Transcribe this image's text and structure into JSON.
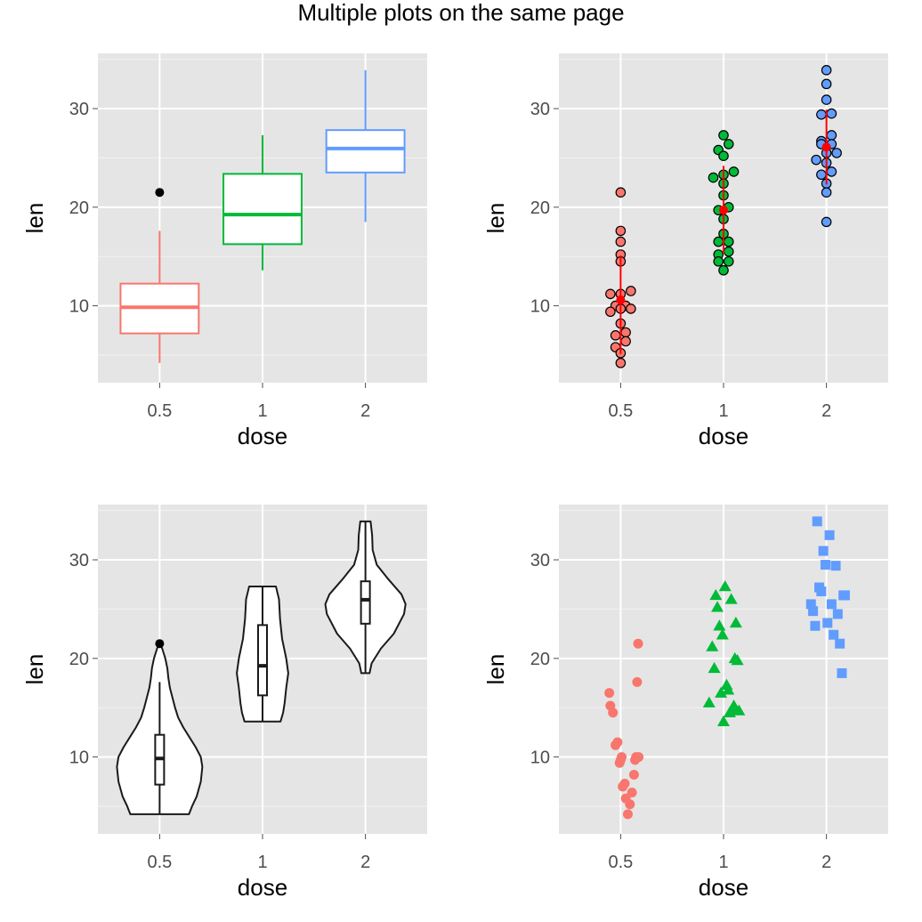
{
  "page": {
    "title": "Multiple plots on the same page"
  },
  "colors": {
    "panel_bg": "#e5e5e5",
    "grid_major": "#ffffff",
    "grid_minor": "#f2f2f2",
    "dose_0_5": "#f8766d",
    "dose_1": "#00ba38",
    "dose_2": "#619cff",
    "summary": "#ff0000",
    "outline": "#1a1a1a"
  },
  "chart_data": [
    {
      "type": "boxplot",
      "xlabel": "dose",
      "ylabel": "len",
      "categories": [
        "0.5",
        "1",
        "2"
      ],
      "ylim": [
        2.2,
        35.6
      ],
      "yticks": [
        10,
        20,
        30
      ],
      "grid": true,
      "boxes": [
        {
          "category": "0.5",
          "min": 4.2,
          "q1": 7.2,
          "median": 9.85,
          "q3": 12.25,
          "max": 17.6,
          "outliers": [
            21.5
          ]
        },
        {
          "category": "1",
          "min": 13.6,
          "q1": 16.25,
          "median": 19.25,
          "q3": 23.38,
          "max": 27.3,
          "outliers": []
        },
        {
          "category": "2",
          "min": 18.5,
          "q1": 23.52,
          "median": 25.95,
          "q3": 27.82,
          "max": 33.9,
          "outliers": []
        }
      ]
    },
    {
      "type": "dotplot",
      "xlabel": "dose",
      "ylabel": "len",
      "categories": [
        "0.5",
        "1",
        "2"
      ],
      "ylim": [
        2.2,
        35.6
      ],
      "yticks": [
        10,
        20,
        30
      ],
      "grid": true,
      "groups": [
        {
          "category": "0.5",
          "values": [
            4.2,
            5.2,
            5.8,
            6.4,
            7.0,
            7.3,
            8.2,
            9.4,
            9.7,
            9.7,
            10.0,
            10.0,
            11.2,
            11.2,
            11.5,
            14.5,
            15.2,
            16.5,
            17.6,
            21.5
          ],
          "mean": 10.6,
          "mean_minus_sd": 5.1,
          "mean_plus_sd": 15.1
        },
        {
          "category": "1",
          "values": [
            13.6,
            14.5,
            14.5,
            15.2,
            15.5,
            16.5,
            16.5,
            17.3,
            18.8,
            19.7,
            20.0,
            21.2,
            22.4,
            23.0,
            23.3,
            23.6,
            25.2,
            25.8,
            26.4,
            27.3
          ],
          "mean": 19.7,
          "mean_minus_sd": 15.3,
          "mean_plus_sd": 24.2
        },
        {
          "category": "2",
          "values": [
            18.5,
            21.5,
            22.4,
            23.3,
            23.6,
            24.5,
            24.8,
            25.5,
            25.5,
            26.4,
            26.4,
            26.7,
            27.3,
            29.4,
            29.5,
            30.9,
            32.5,
            33.9
          ],
          "mean": 26.1,
          "mean_minus_sd": 22.3,
          "mean_plus_sd": 29.9
        }
      ]
    },
    {
      "type": "violin",
      "xlabel": "dose",
      "ylabel": "len",
      "categories": [
        "0.5",
        "1",
        "2"
      ],
      "ylim": [
        2.2,
        35.6
      ],
      "yticks": [
        10,
        20,
        30
      ],
      "grid": true,
      "violins": [
        {
          "category": "0.5",
          "profile": [
            [
              4.2,
              0.57
            ],
            [
              5,
              0.63
            ],
            [
              6,
              0.72
            ],
            [
              7.5,
              0.8
            ],
            [
              9,
              0.83
            ],
            [
              10,
              0.8
            ],
            [
              11,
              0.7
            ],
            [
              12,
              0.58
            ],
            [
              13,
              0.46
            ],
            [
              14,
              0.36
            ],
            [
              15,
              0.3
            ],
            [
              16,
              0.25
            ],
            [
              17,
              0.2
            ],
            [
              18,
              0.17
            ],
            [
              19,
              0.15
            ],
            [
              20,
              0.11
            ],
            [
              21,
              0.05
            ],
            [
              21.5,
              0.01
            ]
          ],
          "box": {
            "min": 4.2,
            "q1": 7.2,
            "median": 9.85,
            "q3": 12.25,
            "max": 17.6,
            "outliers": [
              21.5
            ]
          }
        },
        {
          "category": "1",
          "profile": [
            [
              13.6,
              0.35
            ],
            [
              14.5,
              0.4
            ],
            [
              15.5,
              0.43
            ],
            [
              17,
              0.46
            ],
            [
              18.5,
              0.5
            ],
            [
              20,
              0.46
            ],
            [
              22,
              0.38
            ],
            [
              24,
              0.34
            ],
            [
              26,
              0.32
            ],
            [
              27.3,
              0.26
            ]
          ],
          "box": {
            "min": 13.6,
            "q1": 16.25,
            "median": 19.25,
            "q3": 23.38,
            "max": 27.3,
            "outliers": []
          }
        },
        {
          "category": "2",
          "profile": [
            [
              18.5,
              0.08
            ],
            [
              19.5,
              0.12
            ],
            [
              21,
              0.3
            ],
            [
              22.5,
              0.55
            ],
            [
              24.5,
              0.75
            ],
            [
              25.5,
              0.78
            ],
            [
              26.5,
              0.7
            ],
            [
              28,
              0.45
            ],
            [
              29.5,
              0.22
            ],
            [
              31,
              0.14
            ],
            [
              32.5,
              0.13
            ],
            [
              33.9,
              0.1
            ]
          ],
          "box": {
            "min": 18.5,
            "q1": 23.52,
            "median": 25.95,
            "q3": 27.82,
            "max": 33.9,
            "outliers": []
          }
        }
      ]
    },
    {
      "type": "scatter",
      "xlabel": "dose",
      "ylabel": "len",
      "categories": [
        "0.5",
        "1",
        "2"
      ],
      "ylim": [
        2.2,
        35.6
      ],
      "yticks": [
        10,
        20,
        30
      ],
      "grid": true,
      "shapes": [
        "circle",
        "triangle",
        "square"
      ],
      "points": [
        {
          "category": "0.5",
          "x": [
            -0.22,
            -0.2,
            -0.15,
            -0.1,
            -0.06,
            -0.02,
            0.0,
            0.02,
            0.04,
            0.08,
            0.1,
            0.14,
            0.18,
            0.22,
            0.26,
            0.28,
            0.3,
            0.32,
            0.34,
            0.35
          ],
          "y": [
            16.5,
            15.2,
            14.5,
            11.2,
            11.5,
            9.4,
            9.7,
            10.0,
            7.0,
            7.3,
            5.8,
            4.2,
            5.2,
            6.4,
            8.2,
            9.7,
            10.0,
            17.6,
            21.5,
            10.0
          ]
        },
        {
          "category": "1",
          "x": [
            -0.28,
            -0.22,
            -0.18,
            -0.15,
            -0.12,
            -0.08,
            -0.05,
            -0.02,
            0.0,
            0.03,
            0.06,
            0.09,
            0.12,
            0.15,
            0.18,
            0.2,
            0.22,
            0.24,
            0.27,
            0.3
          ],
          "y": [
            15.5,
            21.2,
            19.0,
            26.4,
            25.2,
            23.3,
            16.5,
            22.4,
            13.6,
            27.3,
            17.3,
            16.8,
            14.5,
            26.0,
            14.8,
            15.2,
            20.0,
            23.6,
            19.8,
            14.7
          ]
        },
        {
          "category": "2",
          "x": [
            -0.3,
            -0.26,
            -0.22,
            -0.18,
            -0.14,
            -0.1,
            -0.06,
            -0.02,
            0.02,
            0.06,
            0.1,
            0.14,
            0.18,
            0.22,
            0.26,
            0.3,
            0.33,
            0.36
          ],
          "y": [
            25.5,
            24.8,
            23.3,
            33.9,
            27.2,
            26.8,
            30.9,
            29.5,
            23.6,
            32.5,
            25.5,
            22.4,
            29.4,
            24.5,
            21.5,
            18.5,
            26.4,
            26.4
          ]
        }
      ]
    }
  ],
  "layout_labels": {
    "panels": [
      "boxplot",
      "dotplot",
      "violin",
      "stripchart"
    ]
  }
}
